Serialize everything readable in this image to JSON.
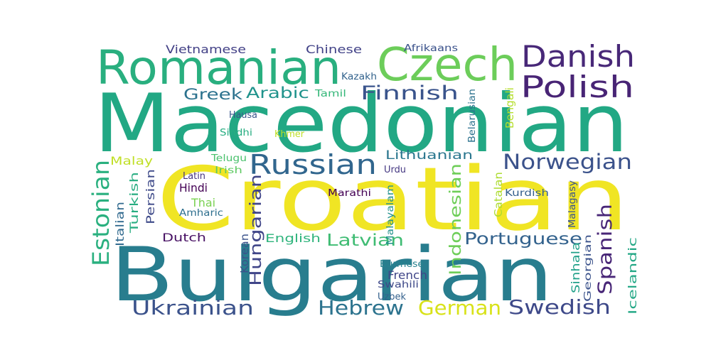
{
  "words": [
    {
      "text": "Croatian",
      "color": "#f0e524"
    },
    {
      "text": "Macedonian",
      "color": "#22a884"
    },
    {
      "text": "Bulgarian",
      "color": "#287d8e"
    },
    {
      "text": "Romanian",
      "color": "#29af7f"
    },
    {
      "text": "Czech",
      "color": "#6ccd5a"
    },
    {
      "text": "Danish",
      "color": "#482878"
    },
    {
      "text": "Polish",
      "color": "#482475"
    },
    {
      "text": "Russian",
      "color": "#31668e"
    },
    {
      "text": "Norwegian",
      "color": "#3b528b"
    },
    {
      "text": "Finnish",
      "color": "#3a548c"
    },
    {
      "text": "Greek",
      "color": "#2c728e"
    },
    {
      "text": "Arabic",
      "color": "#20938c"
    },
    {
      "text": "Estonian",
      "color": "#2ab07f"
    },
    {
      "text": "Ukrainian",
      "color": "#3b528b"
    },
    {
      "text": "Hebrew",
      "color": "#2c738e"
    },
    {
      "text": "German",
      "color": "#d8e219"
    },
    {
      "text": "Swedish",
      "color": "#3e4989"
    },
    {
      "text": "Spanish",
      "color": "#482677"
    },
    {
      "text": "Portuguese",
      "color": "#33628d"
    },
    {
      "text": "Latvian",
      "color": "#3fbc73"
    },
    {
      "text": "Hungarian",
      "color": "#404588"
    },
    {
      "text": "Indonesian",
      "color": "#6ece58"
    },
    {
      "text": "Lithuanian",
      "color": "#2a768e"
    },
    {
      "text": "Vietnamese",
      "color": "#424086"
    },
    {
      "text": "Chinese",
      "color": "#414287"
    },
    {
      "text": "Afrikaans",
      "color": "#3b528b"
    },
    {
      "text": "Kazakh",
      "color": "#33638d"
    },
    {
      "text": "Tamil",
      "color": "#35b779"
    },
    {
      "text": "Bengali",
      "color": "#b5de2b"
    },
    {
      "text": "Belarusian",
      "color": "#2c728e"
    },
    {
      "text": "Hausa",
      "color": "#39568c"
    },
    {
      "text": "Sindhi",
      "color": "#27ad81"
    },
    {
      "text": "Khmer",
      "color": "#bddf26"
    },
    {
      "text": "Telugu",
      "color": "#4ac16d"
    },
    {
      "text": "Irish",
      "color": "#5ec962"
    },
    {
      "text": "Urdu",
      "color": "#453882"
    },
    {
      "text": "Latin",
      "color": "#46337f"
    },
    {
      "text": "Malay",
      "color": "#c0df25"
    },
    {
      "text": "Hindi",
      "color": "#440154"
    },
    {
      "text": "Persian",
      "color": "#3e4a89"
    },
    {
      "text": "Turkish",
      "color": "#27ad81"
    },
    {
      "text": "Italian",
      "color": "#30698e"
    },
    {
      "text": "Thai",
      "color": "#7ad151"
    },
    {
      "text": "Amharic",
      "color": "#2e6f8e"
    },
    {
      "text": "Marathi",
      "color": "#440154"
    },
    {
      "text": "Malayalam",
      "color": "#21918c"
    },
    {
      "text": "Catalan",
      "color": "#addc30"
    },
    {
      "text": "Kurdish",
      "color": "#355f8d"
    },
    {
      "text": "Malagasy",
      "color": "#3a538b"
    },
    {
      "text": "Dutch",
      "color": "#471063"
    },
    {
      "text": "English",
      "color": "#2fb47c"
    },
    {
      "text": "Korean",
      "color": "#3b528b"
    },
    {
      "text": "Burmese",
      "color": "#26828e"
    },
    {
      "text": "French",
      "color": "#404688"
    },
    {
      "text": "Swahili",
      "color": "#3e4989"
    },
    {
      "text": "Uzbek",
      "color": "#34618d"
    },
    {
      "text": "Sinhala",
      "color": "#1fa088"
    },
    {
      "text": "Georgian",
      "color": "#3b528b"
    },
    {
      "text": "Icelandic",
      "color": "#22a785"
    }
  ]
}
